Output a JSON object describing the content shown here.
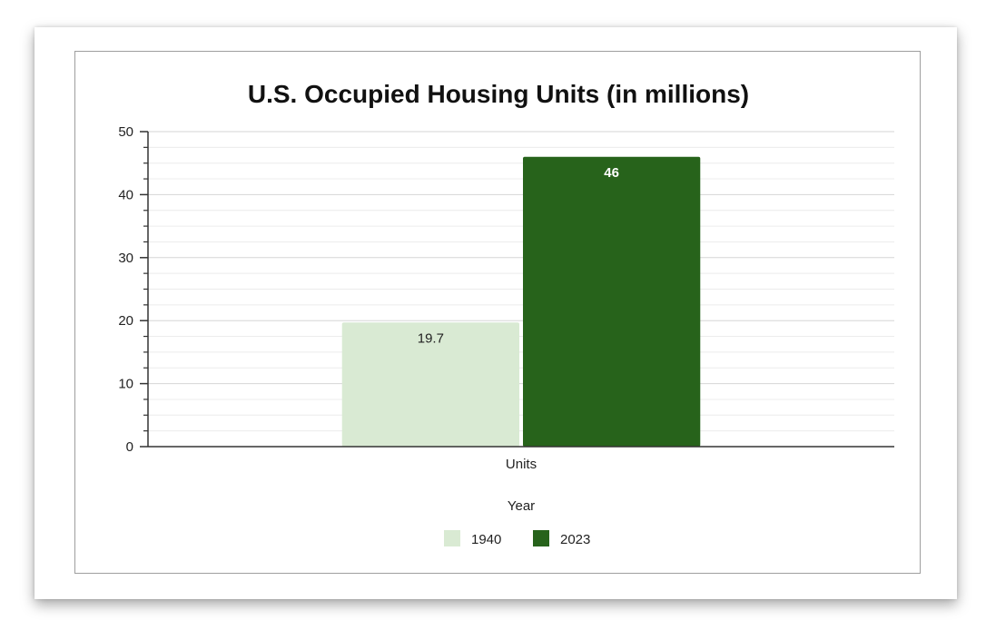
{
  "chart_data": {
    "type": "bar",
    "title": "U.S. Occupied Housing Units (in millions)",
    "categories": [
      "Units"
    ],
    "series": [
      {
        "name": "1940",
        "values": [
          19.7
        ],
        "color": "#d9ead3",
        "label_color": "#222222",
        "label_weight": "normal"
      },
      {
        "name": "2023",
        "values": [
          46
        ],
        "color": "#27631b",
        "label_color": "#ffffff",
        "label_weight": "bold"
      }
    ],
    "ylim": [
      0,
      50
    ],
    "yticks": [
      0,
      10,
      20,
      30,
      40,
      50
    ],
    "minor_ticks_per_major": 3,
    "grid": true,
    "legend_title": "Year",
    "legend_position": "bottom",
    "xlabel": "",
    "ylabel": ""
  }
}
